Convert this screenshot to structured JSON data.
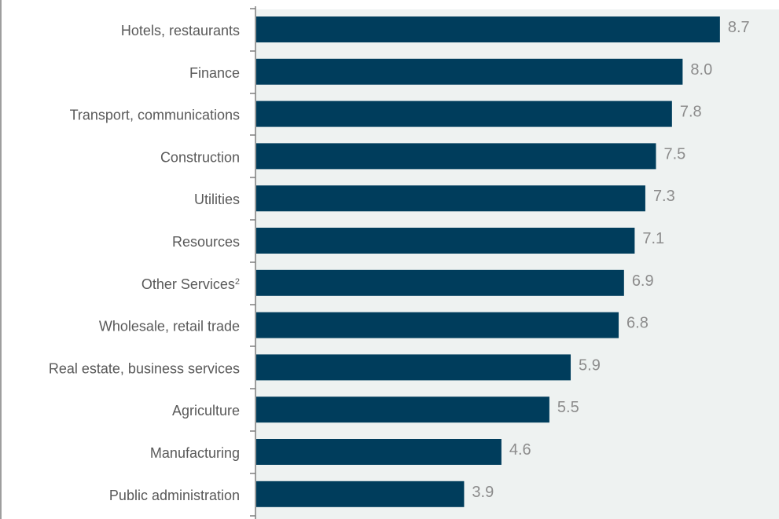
{
  "chart_data": {
    "type": "bar",
    "orientation": "horizontal",
    "categories": [
      "Hotels, restaurants",
      "Finance",
      "Transport, communications",
      "Construction",
      "Utilities",
      "Resources",
      "Other Services",
      "Wholesale, retail trade",
      "Real estate, business services",
      "Agriculture",
      "Manufacturing",
      "Public administration"
    ],
    "category_superscripts": [
      "",
      "",
      "",
      "",
      "",
      "",
      "2",
      "",
      "",
      "",
      "",
      ""
    ],
    "values": [
      8.7,
      8.0,
      7.8,
      7.5,
      7.3,
      7.1,
      6.9,
      6.8,
      5.9,
      5.5,
      4.6,
      3.9
    ],
    "value_labels": [
      "8.7",
      "8.0",
      "7.8",
      "7.5",
      "7.3",
      "7.1",
      "6.9",
      "6.8",
      "5.9",
      "5.5",
      "4.6",
      "3.9"
    ],
    "xlim": [
      0,
      10
    ],
    "grid": false,
    "colors": {
      "bar": "#003d5c",
      "plot_background": "#eef2f1",
      "axis": "#7f7f7f",
      "category_text": "#595959",
      "value_text": "#8c8c8c"
    }
  }
}
